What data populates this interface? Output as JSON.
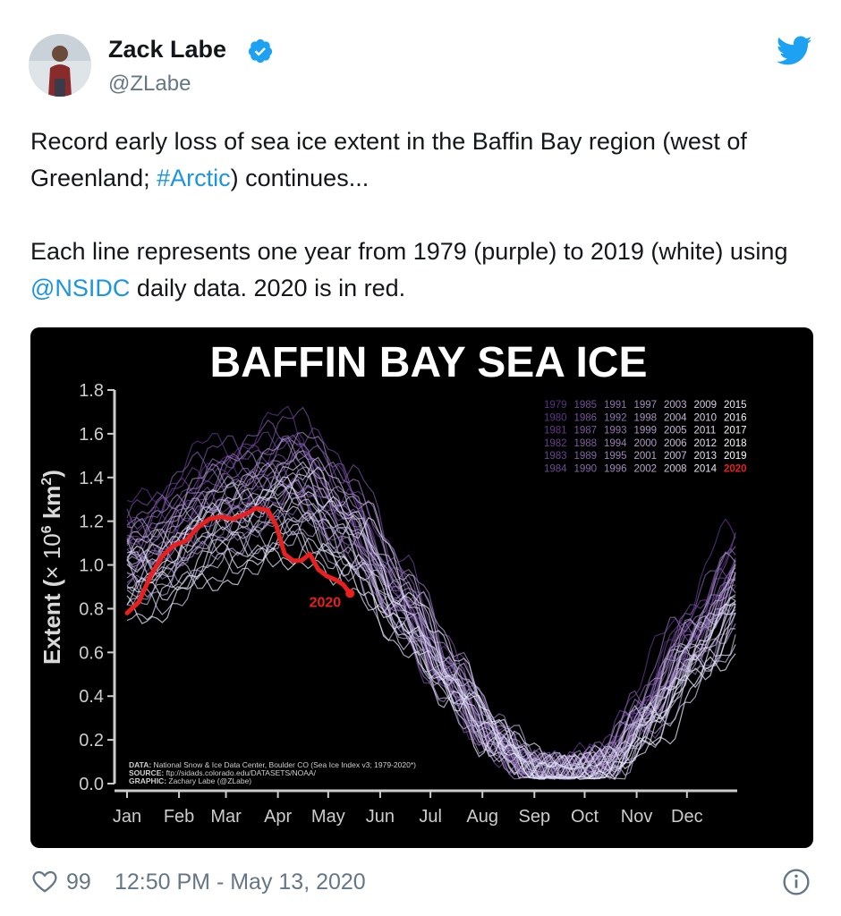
{
  "tweet": {
    "author_name": "Zack Labe",
    "author_handle": "@ZLabe",
    "text": {
      "p1_before": "Record early loss of sea ice extent in the Baffin Bay region (west of Greenland; ",
      "p1_hashtag": "#Arctic",
      "p1_after": ") continues...",
      "p2_before": "Each line represents one year from 1979 (purple) to 2019 (white) using ",
      "p2_mention": "@NSIDC",
      "p2_after": " daily data. 2020 is in red."
    },
    "likes": "99",
    "timestamp": "12:50 PM - May 13, 2020"
  },
  "icons": {
    "verified": "verified-badge-icon",
    "twitter": "twitter-bird-icon",
    "like": "heart-icon",
    "info": "info-icon"
  },
  "colors": {
    "link": "#1b95e0",
    "verified": "#1da1f2",
    "current_year": "#e8201f",
    "early_years": "#5a2f86",
    "late_years": "#ffffff"
  },
  "chart_data": {
    "type": "line",
    "title": "BAFFIN BAY SEA ICE",
    "ylabel_prefix": "Extent (",
    "ylabel_exp": "6",
    "ylabel_suffix": " km",
    "ylabel_sup2": "2",
    "ylabel_close": ")",
    "ylabel_times": "× 10",
    "yticks": [
      "0.0",
      "0.2",
      "0.4",
      "0.6",
      "0.8",
      "1.0",
      "1.2",
      "1.4",
      "1.6",
      "1.8"
    ],
    "ylim": [
      0,
      1.8
    ],
    "xticks": [
      "Jan",
      "Feb",
      "Mar",
      "Apr",
      "May",
      "Jun",
      "Jul",
      "Aug",
      "Sep",
      "Oct",
      "Nov",
      "Dec"
    ],
    "legend_years": [
      [
        "1979",
        "1985",
        "1991",
        "1997",
        "2003",
        "2009",
        "2015"
      ],
      [
        "1980",
        "1986",
        "1992",
        "1998",
        "2004",
        "2010",
        "2016"
      ],
      [
        "1981",
        "1987",
        "1993",
        "1999",
        "2005",
        "2011",
        "2017"
      ],
      [
        "1982",
        "1988",
        "1994",
        "2000",
        "2006",
        "2012",
        "2018"
      ],
      [
        "1983",
        "1989",
        "1995",
        "2001",
        "2007",
        "2013",
        "2019"
      ],
      [
        "1984",
        "1990",
        "1996",
        "2002",
        "2008",
        "2014",
        "2020"
      ]
    ],
    "highlight_label": "2020",
    "series_2020": {
      "name": "2020",
      "x": [
        1,
        8,
        15,
        22,
        29,
        36,
        43,
        50,
        57,
        64,
        71,
        78,
        85,
        90,
        95,
        100,
        105,
        110,
        115,
        120,
        126,
        130,
        134
      ],
      "y": [
        0.78,
        0.83,
        0.95,
        1.04,
        1.09,
        1.11,
        1.17,
        1.21,
        1.22,
        1.21,
        1.23,
        1.26,
        1.25,
        1.18,
        1.05,
        1.02,
        1.02,
        1.05,
        0.98,
        0.95,
        0.93,
        0.91,
        0.87
      ]
    },
    "climatology_years": 41,
    "source_lines": [
      {
        "label": "DATA:",
        "text": " National Snow & Ice Data Center, Boulder CO (Sea Ice Index v3; 1979-2020*)"
      },
      {
        "label": "SOURCE:",
        "text": " ftp://sidads.colorado.edu/DATASETS/NOAA/"
      },
      {
        "label": "GRAPHIC:",
        "text": " Zachary Labe (@ZLabe)"
      }
    ]
  }
}
